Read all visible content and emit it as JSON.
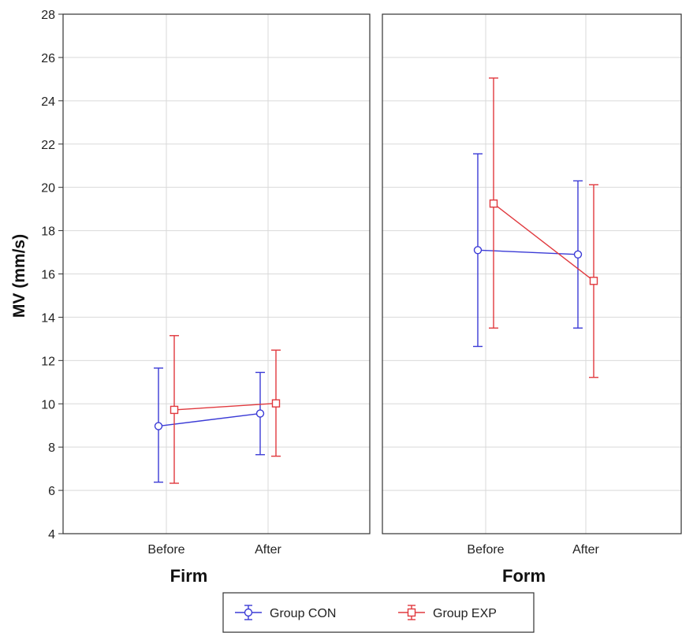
{
  "chart_data": {
    "type": "line",
    "ylabel": "MV (mm/s)",
    "ylim": [
      4,
      28
    ],
    "yticks": [
      4,
      6,
      8,
      10,
      12,
      14,
      16,
      18,
      20,
      22,
      24,
      26,
      28
    ],
    "categories": [
      "Before",
      "After"
    ],
    "grid": true,
    "legend_position": "bottom",
    "panels": [
      {
        "title": "Firm",
        "series": [
          {
            "name": "Group CON",
            "color": "#3b3bd6",
            "marker": "circle",
            "values": [
              8.97,
              9.55
            ],
            "lower": [
              6.38,
              7.65
            ],
            "upper": [
              11.65,
              11.45
            ]
          },
          {
            "name": "Group EXP",
            "color": "#e0393e",
            "marker": "square",
            "values": [
              9.72,
              10.02
            ],
            "lower": [
              6.33,
              7.58
            ],
            "upper": [
              13.15,
              12.48
            ]
          }
        ]
      },
      {
        "title": "Form",
        "series": [
          {
            "name": "Group CON",
            "color": "#3b3bd6",
            "marker": "circle",
            "values": [
              17.1,
              16.9
            ],
            "lower": [
              12.65,
              13.5
            ],
            "upper": [
              21.55,
              20.3
            ]
          },
          {
            "name": "Group EXP",
            "color": "#e0393e",
            "marker": "square",
            "values": [
              19.25,
              15.68
            ],
            "lower": [
              13.5,
              11.22
            ],
            "upper": [
              25.05,
              20.12
            ]
          }
        ]
      }
    ],
    "legend": [
      {
        "name": "Group CON",
        "color": "#3b3bd6",
        "marker": "circle"
      },
      {
        "name": "Group EXP",
        "color": "#e0393e",
        "marker": "square"
      }
    ]
  }
}
